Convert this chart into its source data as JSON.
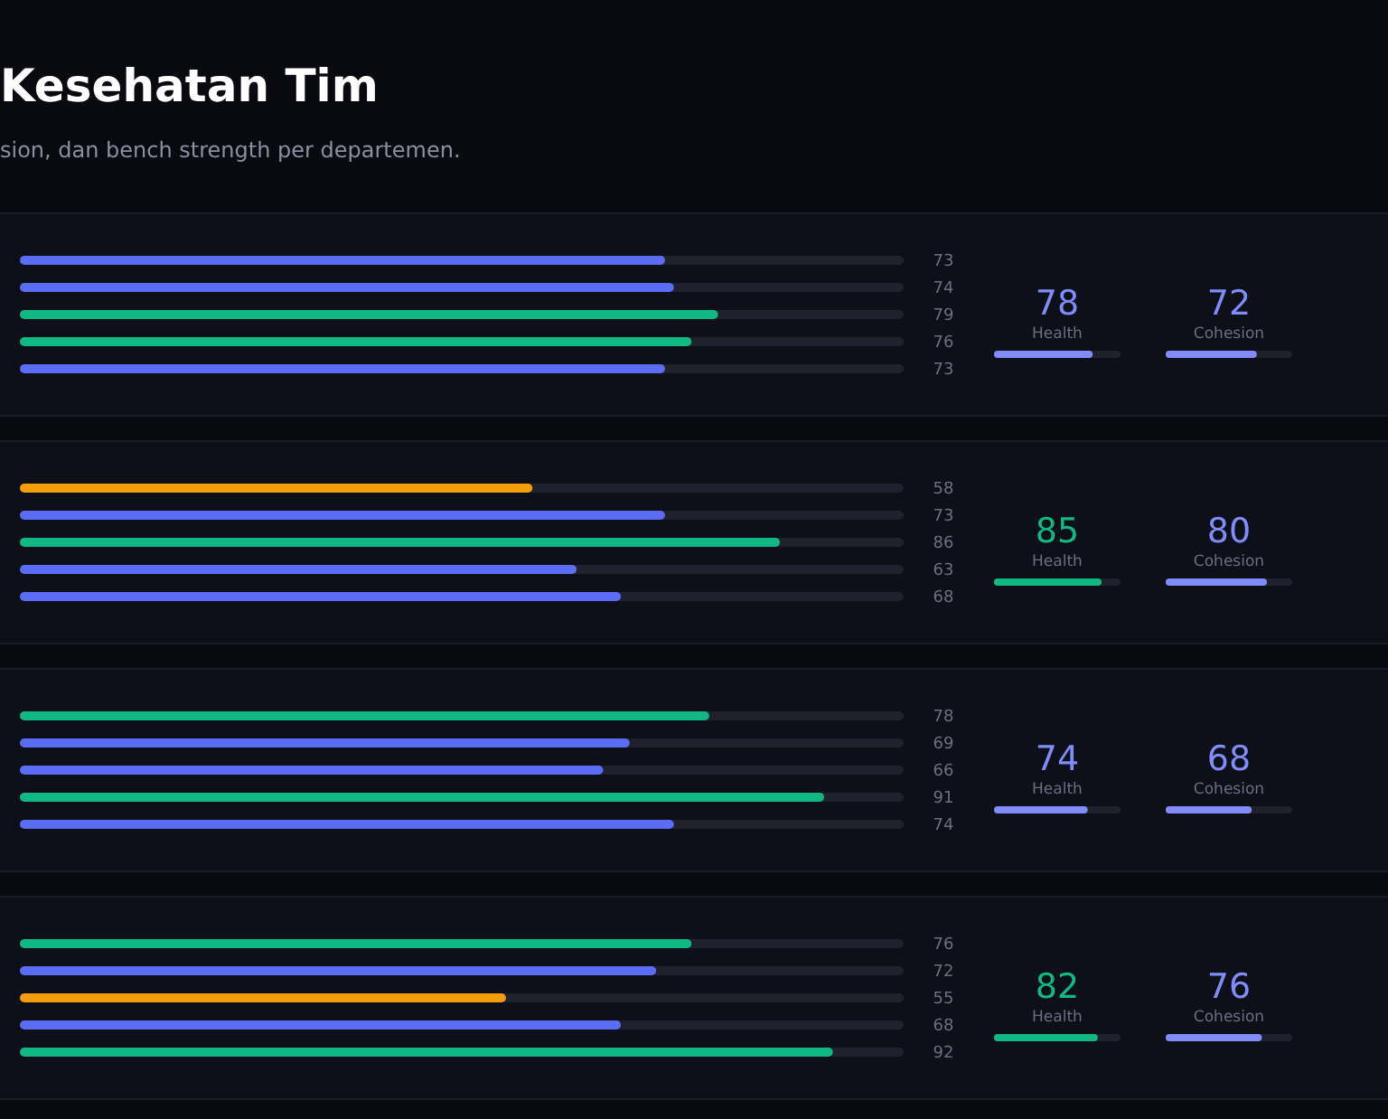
{
  "chart_data": [
    {
      "type": "bar",
      "orientation": "horizontal",
      "title": "Kesehatan Tim",
      "subtitle": "sion, dan bench strength per departemen.",
      "categories": [
        null,
        null,
        null,
        null,
        null
      ],
      "values": [
        73,
        74,
        79,
        76,
        73
      ],
      "colors": [
        "#5b6cf5",
        "#5b6cf5",
        "#10b981",
        "#10b981",
        "#5b6cf5"
      ],
      "xlim": [
        0,
        100
      ],
      "data_labels": true
    },
    {
      "type": "other",
      "categories": [
        "Health",
        "Cohesion"
      ],
      "values": [
        78,
        72
      ],
      "colors": [
        "#818cf8",
        "#818cf8"
      ],
      "data_labels": true
    },
    {
      "type": "bar",
      "orientation": "horizontal",
      "categories": [
        null,
        null,
        null,
        null,
        null
      ],
      "values": [
        58,
        73,
        86,
        63,
        68
      ],
      "colors": [
        "#f59e0b",
        "#5b6cf5",
        "#10b981",
        "#5b6cf5",
        "#5b6cf5"
      ],
      "xlim": [
        0,
        100
      ],
      "data_labels": true
    },
    {
      "type": "other",
      "categories": [
        "Health",
        "Cohesion"
      ],
      "values": [
        85,
        80
      ],
      "colors": [
        "#10b981",
        "#818cf8"
      ],
      "data_labels": true
    },
    {
      "type": "bar",
      "orientation": "horizontal",
      "categories": [
        null,
        null,
        null,
        null,
        null
      ],
      "values": [
        78,
        69,
        66,
        91,
        74
      ],
      "colors": [
        "#10b981",
        "#5b6cf5",
        "#5b6cf5",
        "#10b981",
        "#5b6cf5"
      ],
      "xlim": [
        0,
        100
      ],
      "data_labels": true
    },
    {
      "type": "other",
      "categories": [
        "Health",
        "Cohesion"
      ],
      "values": [
        74,
        68
      ],
      "colors": [
        "#818cf8",
        "#818cf8"
      ],
      "data_labels": true
    },
    {
      "type": "bar",
      "orientation": "horizontal",
      "categories": [
        null,
        null,
        null,
        null,
        null
      ],
      "values": [
        76,
        72,
        55,
        68,
        92
      ],
      "colors": [
        "#10b981",
        "#5b6cf5",
        "#f59e0b",
        "#5b6cf5",
        "#10b981"
      ],
      "xlim": [
        0,
        100
      ],
      "data_labels": true
    },
    {
      "type": "other",
      "categories": [
        "Health",
        "Cohesion"
      ],
      "values": [
        82,
        76
      ],
      "colors": [
        "#10b981",
        "#818cf8"
      ],
      "data_labels": true
    }
  ]
}
